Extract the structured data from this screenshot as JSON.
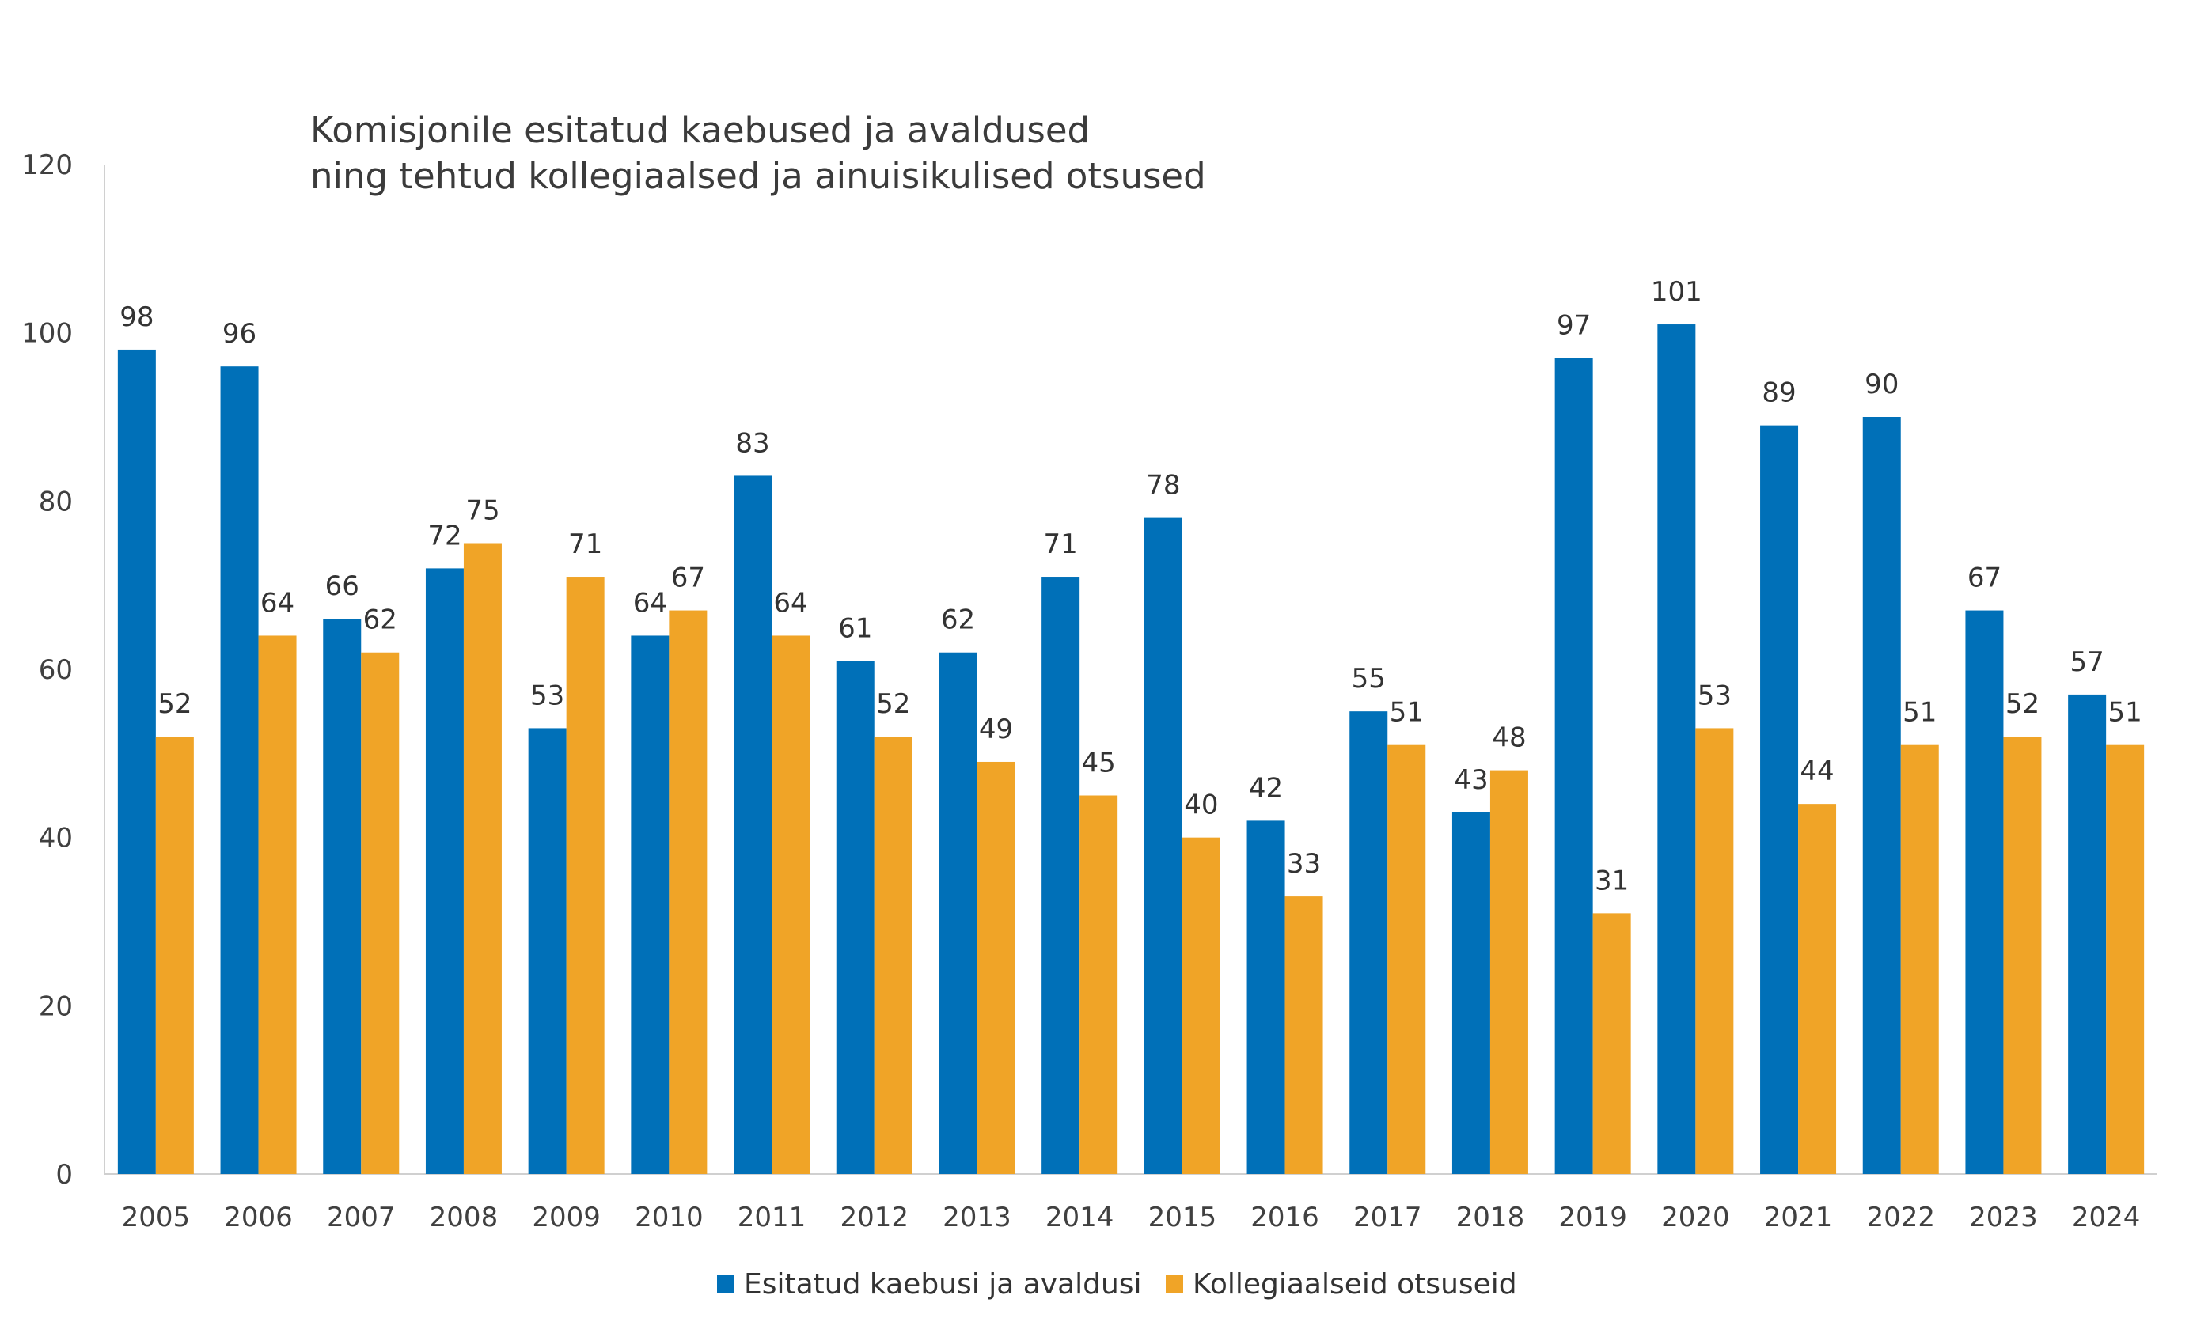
{
  "chart_data": {
    "type": "bar",
    "title_lines": [
      "Komisjonile esitatud kaebused ja avaldused",
      "ning tehtud kollegiaalsed ja ainuisikulised otsused"
    ],
    "categories": [
      "2005",
      "2006",
      "2007",
      "2008",
      "2009",
      "2010",
      "2011",
      "2012",
      "2013",
      "2014",
      "2015",
      "2016",
      "2017",
      "2018",
      "2019",
      "2020",
      "2021",
      "2022",
      "2023",
      "2024"
    ],
    "series": [
      {
        "name": "Esitatud kaebusi ja avaldusi",
        "color": "#0070b8",
        "values": [
          98,
          96,
          66,
          72,
          53,
          64,
          83,
          61,
          62,
          71,
          78,
          42,
          55,
          43,
          97,
          101,
          89,
          90,
          67,
          57
        ]
      },
      {
        "name": "Kollegiaalseid otsuseid",
        "color": "#f0a427",
        "values": [
          52,
          64,
          62,
          75,
          71,
          67,
          64,
          52,
          49,
          45,
          40,
          33,
          51,
          48,
          31,
          53,
          44,
          51,
          52,
          51
        ]
      }
    ],
    "y_ticks": [
      "0",
      "20",
      "40",
      "60",
      "80",
      "100",
      "120"
    ],
    "ylim": [
      0,
      120
    ],
    "xlabel": "",
    "ylabel": "",
    "grid": false,
    "legend_position": "bottom-center"
  }
}
